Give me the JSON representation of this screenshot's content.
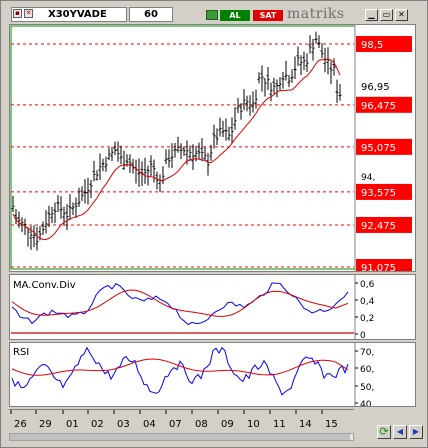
{
  "toolbar": {
    "symbol": "X30YVADE",
    "period": "60",
    "buy_label": "AL",
    "sell_label": "SAT",
    "logo_text": "matriks",
    "icons": [
      "chart-icon",
      "close-icon",
      "green-square-icon",
      "minimize-icon",
      "restore-icon",
      "close-window-icon"
    ]
  },
  "price_panel": {
    "axis_labels": [
      "94,"
    ],
    "current_price": "96,95",
    "levels": [
      {
        "label": "98,5",
        "value": 98.5
      },
      {
        "label": "96,475",
        "value": 96.475
      },
      {
        "label": "95,075",
        "value": 95.075
      },
      {
        "label": "93,575",
        "value": 93.575
      },
      {
        "label": "92,475",
        "value": 92.475
      },
      {
        "label": "91,075",
        "value": 91.075
      }
    ]
  },
  "macd_panel": {
    "title": "MA.Conv.Div",
    "axis_labels": [
      "0,6",
      "0,4",
      "0,2",
      "0"
    ]
  },
  "rsi_panel": {
    "title": "RSI",
    "axis_labels": [
      "70,",
      "60,",
      "50,",
      "40,"
    ]
  },
  "time_axis": {
    "labels": [
      "26",
      "29",
      "01",
      "02",
      "03",
      "04",
      "07",
      "08",
      "09",
      "10",
      "11",
      "14",
      "15"
    ]
  },
  "colors": {
    "level_red": "#ff0000",
    "ma_red": "#e00000",
    "price_black": "#000000",
    "macd_blue": "#0000ff",
    "signal_red": "#e00000",
    "frame_green": "#009000"
  }
}
